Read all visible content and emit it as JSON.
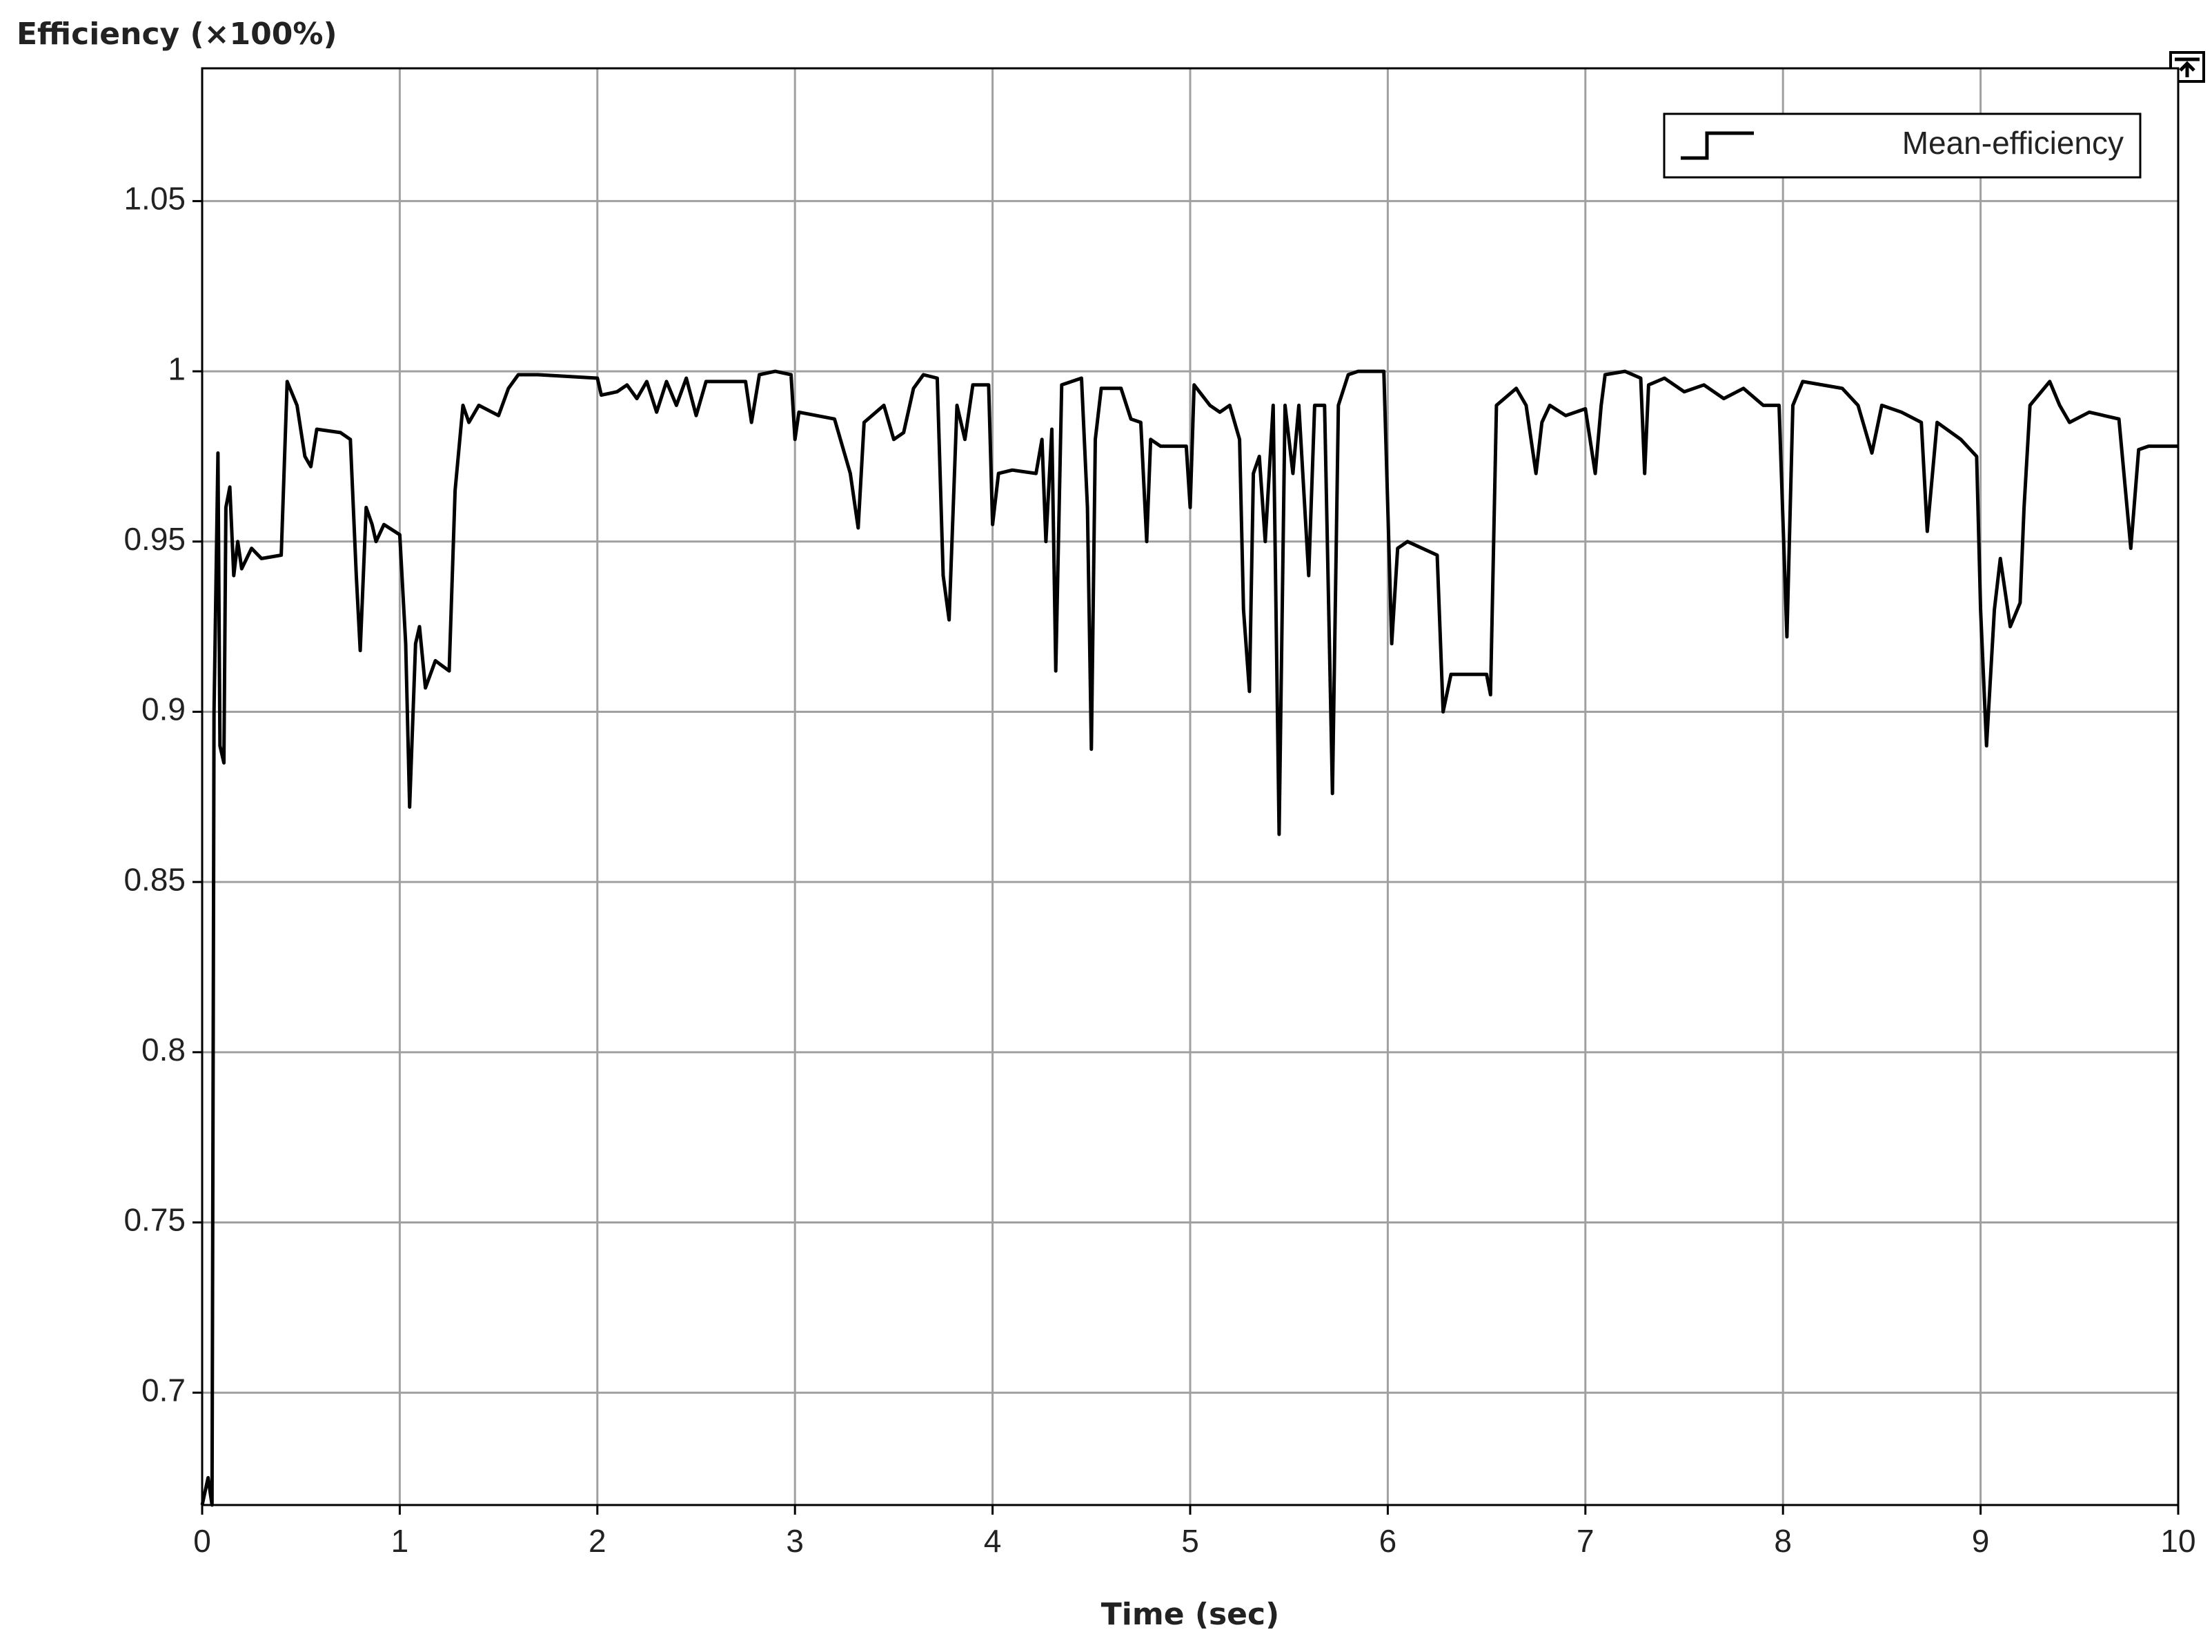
{
  "chart_data": {
    "type": "line",
    "title": "Efficiency (×100%)",
    "xlabel": "Time (sec)",
    "x": [
      0.0,
      0.03,
      0.05,
      0.06,
      0.08,
      0.09,
      0.11,
      0.12,
      0.14,
      0.16,
      0.18,
      0.2,
      0.25,
      0.3,
      0.4,
      0.43,
      0.48,
      0.52,
      0.55,
      0.58,
      0.7,
      0.75,
      0.78,
      0.8,
      0.83,
      0.86,
      0.88,
      0.92,
      1.0,
      1.03,
      1.05,
      1.08,
      1.1,
      1.13,
      1.18,
      1.25,
      1.28,
      1.32,
      1.35,
      1.4,
      1.5,
      1.55,
      1.6,
      1.7,
      2.0,
      2.02,
      2.1,
      2.15,
      2.2,
      2.25,
      2.3,
      2.35,
      2.4,
      2.45,
      2.5,
      2.55,
      2.75,
      2.78,
      2.82,
      2.9,
      2.98,
      3.0,
      3.02,
      3.2,
      3.28,
      3.32,
      3.35,
      3.45,
      3.5,
      3.55,
      3.6,
      3.65,
      3.72,
      3.75,
      3.78,
      3.82,
      3.86,
      3.9,
      3.98,
      4.0,
      4.03,
      4.1,
      4.22,
      4.25,
      4.27,
      4.3,
      4.32,
      4.35,
      4.45,
      4.48,
      4.5,
      4.52,
      4.55,
      4.65,
      4.7,
      4.75,
      4.78,
      4.8,
      4.85,
      4.98,
      5.0,
      5.02,
      5.1,
      5.15,
      5.2,
      5.25,
      5.27,
      5.3,
      5.32,
      5.35,
      5.38,
      5.42,
      5.45,
      5.48,
      5.52,
      5.55,
      5.6,
      5.63,
      5.68,
      5.72,
      5.75,
      5.8,
      5.85,
      5.98,
      6.02,
      6.05,
      6.1,
      6.25,
      6.28,
      6.32,
      6.5,
      6.52,
      6.55,
      6.65,
      6.7,
      6.75,
      6.78,
      6.82,
      6.9,
      7.0,
      7.05,
      7.08,
      7.1,
      7.2,
      7.28,
      7.3,
      7.32,
      7.4,
      7.5,
      7.6,
      7.7,
      7.8,
      7.9,
      7.98,
      8.02,
      8.05,
      8.1,
      8.3,
      8.38,
      8.45,
      8.5,
      8.6,
      8.7,
      8.73,
      8.78,
      8.9,
      8.98,
      9.0,
      9.03,
      9.07,
      9.1,
      9.15,
      9.2,
      9.22,
      9.25,
      9.35,
      9.4,
      9.45,
      9.55,
      9.7,
      9.76,
      9.8,
      9.85,
      10.0
    ],
    "series": [
      {
        "name": "Mean-efficiency",
        "color": "#000000",
        "values": [
          0.667,
          0.675,
          0.667,
          0.9,
          0.976,
          0.89,
          0.885,
          0.96,
          0.966,
          0.94,
          0.95,
          0.942,
          0.948,
          0.945,
          0.946,
          0.997,
          0.99,
          0.975,
          0.972,
          0.983,
          0.982,
          0.98,
          0.94,
          0.918,
          0.96,
          0.955,
          0.95,
          0.955,
          0.952,
          0.92,
          0.872,
          0.92,
          0.925,
          0.907,
          0.915,
          0.912,
          0.965,
          0.99,
          0.985,
          0.99,
          0.987,
          0.995,
          0.999,
          0.999,
          0.998,
          0.993,
          0.994,
          0.996,
          0.992,
          0.997,
          0.988,
          0.997,
          0.99,
          0.998,
          0.987,
          0.997,
          0.997,
          0.985,
          0.999,
          1.0,
          0.999,
          0.98,
          0.988,
          0.986,
          0.97,
          0.954,
          0.985,
          0.99,
          0.98,
          0.982,
          0.995,
          0.999,
          0.998,
          0.94,
          0.927,
          0.99,
          0.98,
          0.996,
          0.996,
          0.955,
          0.97,
          0.971,
          0.97,
          0.98,
          0.95,
          0.983,
          0.912,
          0.996,
          0.998,
          0.96,
          0.889,
          0.98,
          0.995,
          0.995,
          0.986,
          0.985,
          0.95,
          0.98,
          0.978,
          0.978,
          0.96,
          0.996,
          0.99,
          0.988,
          0.99,
          0.98,
          0.93,
          0.906,
          0.97,
          0.975,
          0.95,
          0.99,
          0.864,
          0.99,
          0.97,
          0.99,
          0.94,
          0.99,
          0.99,
          0.876,
          0.99,
          0.999,
          1.0,
          1.0,
          0.92,
          0.948,
          0.95,
          0.946,
          0.9,
          0.911,
          0.911,
          0.905,
          0.99,
          0.995,
          0.99,
          0.97,
          0.985,
          0.99,
          0.987,
          0.989,
          0.97,
          0.99,
          0.999,
          1.0,
          0.998,
          0.97,
          0.996,
          0.998,
          0.994,
          0.996,
          0.992,
          0.995,
          0.99,
          0.99,
          0.922,
          0.99,
          0.997,
          0.995,
          0.99,
          0.976,
          0.99,
          0.988,
          0.985,
          0.953,
          0.985,
          0.98,
          0.975,
          0.93,
          0.89,
          0.93,
          0.945,
          0.925,
          0.932,
          0.96,
          0.99,
          0.997,
          0.99,
          0.985,
          0.988,
          0.986,
          0.948,
          0.977,
          0.978,
          0.978
        ]
      }
    ],
    "xlim": [
      0,
      10
    ],
    "xticks": [
      0,
      1,
      2,
      3,
      4,
      5,
      6,
      7,
      8,
      9,
      10
    ],
    "ylim": [
      0.667,
      1.089
    ],
    "yticks": [
      0.7,
      0.75,
      0.8,
      0.85,
      0.9,
      0.95,
      1,
      1.05
    ],
    "grid": true,
    "legend": "upper right"
  }
}
